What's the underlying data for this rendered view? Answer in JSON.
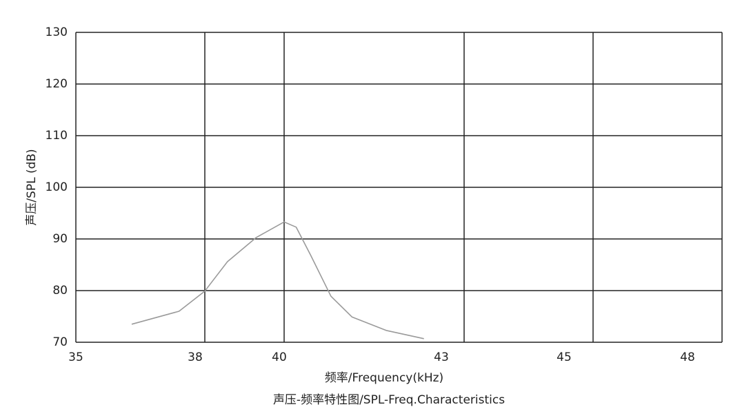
{
  "chart_data": {
    "type": "line",
    "title": "声压-频率特性图/SPL-Freq.Characteristics",
    "x_label": "频率/Frequency(kHz)",
    "y_label": "声压/SPL (dB)",
    "x": [
      36.3,
      37.4,
      38.0,
      38.57,
      39.3,
      40.0,
      40.2,
      40.44,
      40.78,
      41.13,
      41.7,
      42.33
    ],
    "series": [
      {
        "color": "#9a9a9a",
        "values": [
          73.5,
          76.0,
          79.9,
          85.6,
          90.3,
          93.3,
          92.3,
          86.9,
          78.9,
          74.9,
          72.3,
          70.7
        ]
      }
    ],
    "xlim": [
      35,
      48
    ],
    "xticks": [
      35,
      38,
      40,
      43,
      45,
      48
    ],
    "ylim": [
      70,
      130
    ],
    "yticks": [
      70,
      80,
      90,
      100,
      110,
      120,
      130
    ],
    "grid": true
  }
}
